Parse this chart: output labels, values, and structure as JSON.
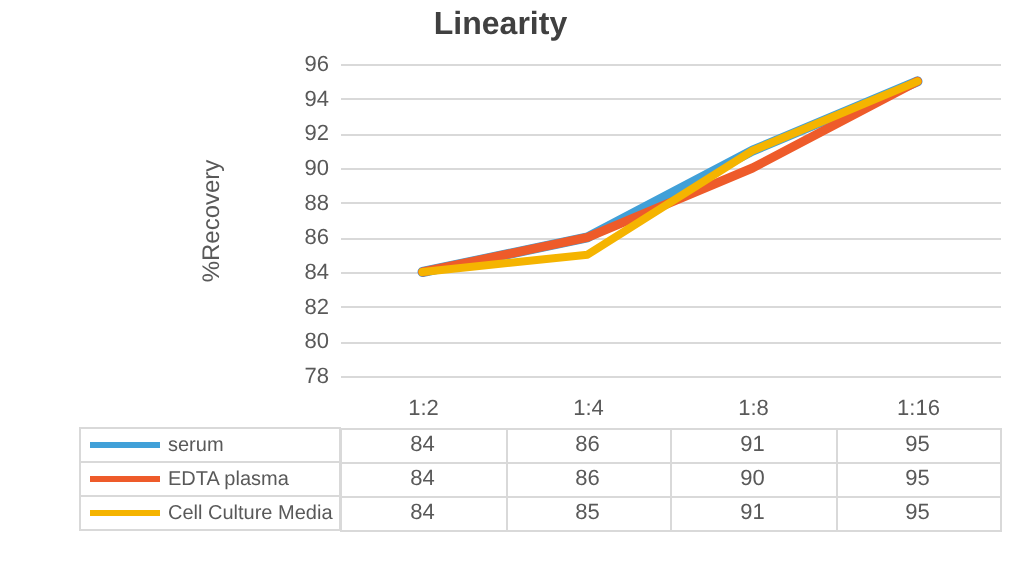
{
  "chart_data": {
    "type": "line",
    "title": "Linearity",
    "ylabel": "%Recovery",
    "categories": [
      "1:2",
      "1:4",
      "1:8",
      "1:16"
    ],
    "series": [
      {
        "name": "serum",
        "color": "#41a0d8",
        "values": [
          84,
          86,
          91,
          95
        ]
      },
      {
        "name": "EDTA plasma",
        "color": "#ee5b2a",
        "values": [
          84,
          86,
          90,
          95
        ]
      },
      {
        "name": "Cell Culture Media",
        "color": "#f5b400",
        "values": [
          84,
          85,
          91,
          95
        ]
      }
    ],
    "ylim": [
      78,
      96
    ],
    "yticks": [
      78,
      80,
      82,
      84,
      86,
      88,
      90,
      92,
      94,
      96
    ],
    "grid": "y",
    "legend": "bottom",
    "data_labels": true,
    "marker": "none",
    "line_style": "solid"
  }
}
